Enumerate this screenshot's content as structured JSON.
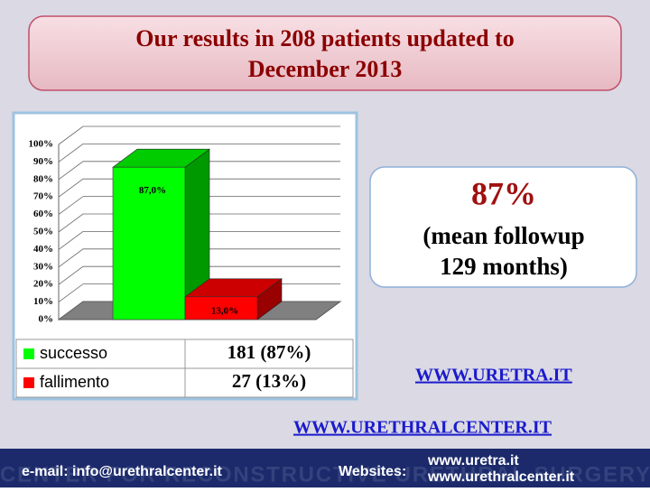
{
  "title": "Our results in 208 patients updated to December 2013",
  "chart_data": {
    "type": "bar3d",
    "ylim": [
      0,
      100
    ],
    "yticks": [
      {
        "value": 0,
        "label": "0%"
      },
      {
        "value": 10,
        "label": "10%"
      },
      {
        "value": 20,
        "label": "20%"
      },
      {
        "value": 30,
        "label": "30%"
      },
      {
        "value": 40,
        "label": "40%"
      },
      {
        "value": 50,
        "label": "50%"
      },
      {
        "value": 60,
        "label": "60%"
      },
      {
        "value": 70,
        "label": "70%"
      },
      {
        "value": 80,
        "label": "80%"
      },
      {
        "value": 90,
        "label": "90%"
      },
      {
        "value": 100,
        "label": "100%"
      }
    ],
    "grid": true,
    "series": [
      {
        "name": "successo",
        "color": "#00ff00",
        "values": [
          87
        ],
        "value_labels": [
          "87,0%"
        ]
      },
      {
        "name": "fallimento",
        "color": "#ff0000",
        "values": [
          13
        ],
        "value_labels": [
          "13,0%"
        ]
      }
    ]
  },
  "table": {
    "rows": [
      [
        "181 (87%)"
      ],
      [
        "27 (13%)"
      ]
    ]
  },
  "highlight": {
    "value": "87%",
    "lines": [
      "(mean followup",
      "129 months)"
    ]
  },
  "links": [
    "WWW.URETRA.IT",
    "WWW.URETHRALCENTER.IT"
  ],
  "footer": {
    "email": "e-mail: info@urethralcenter.it",
    "websites_label": "Websites:",
    "sites": [
      "www.uretra.it",
      "www.urethralcenter.it"
    ],
    "watermark": "CENTER FOR RECONSTRUCTIVE URETHRAL SURGERY"
  }
}
